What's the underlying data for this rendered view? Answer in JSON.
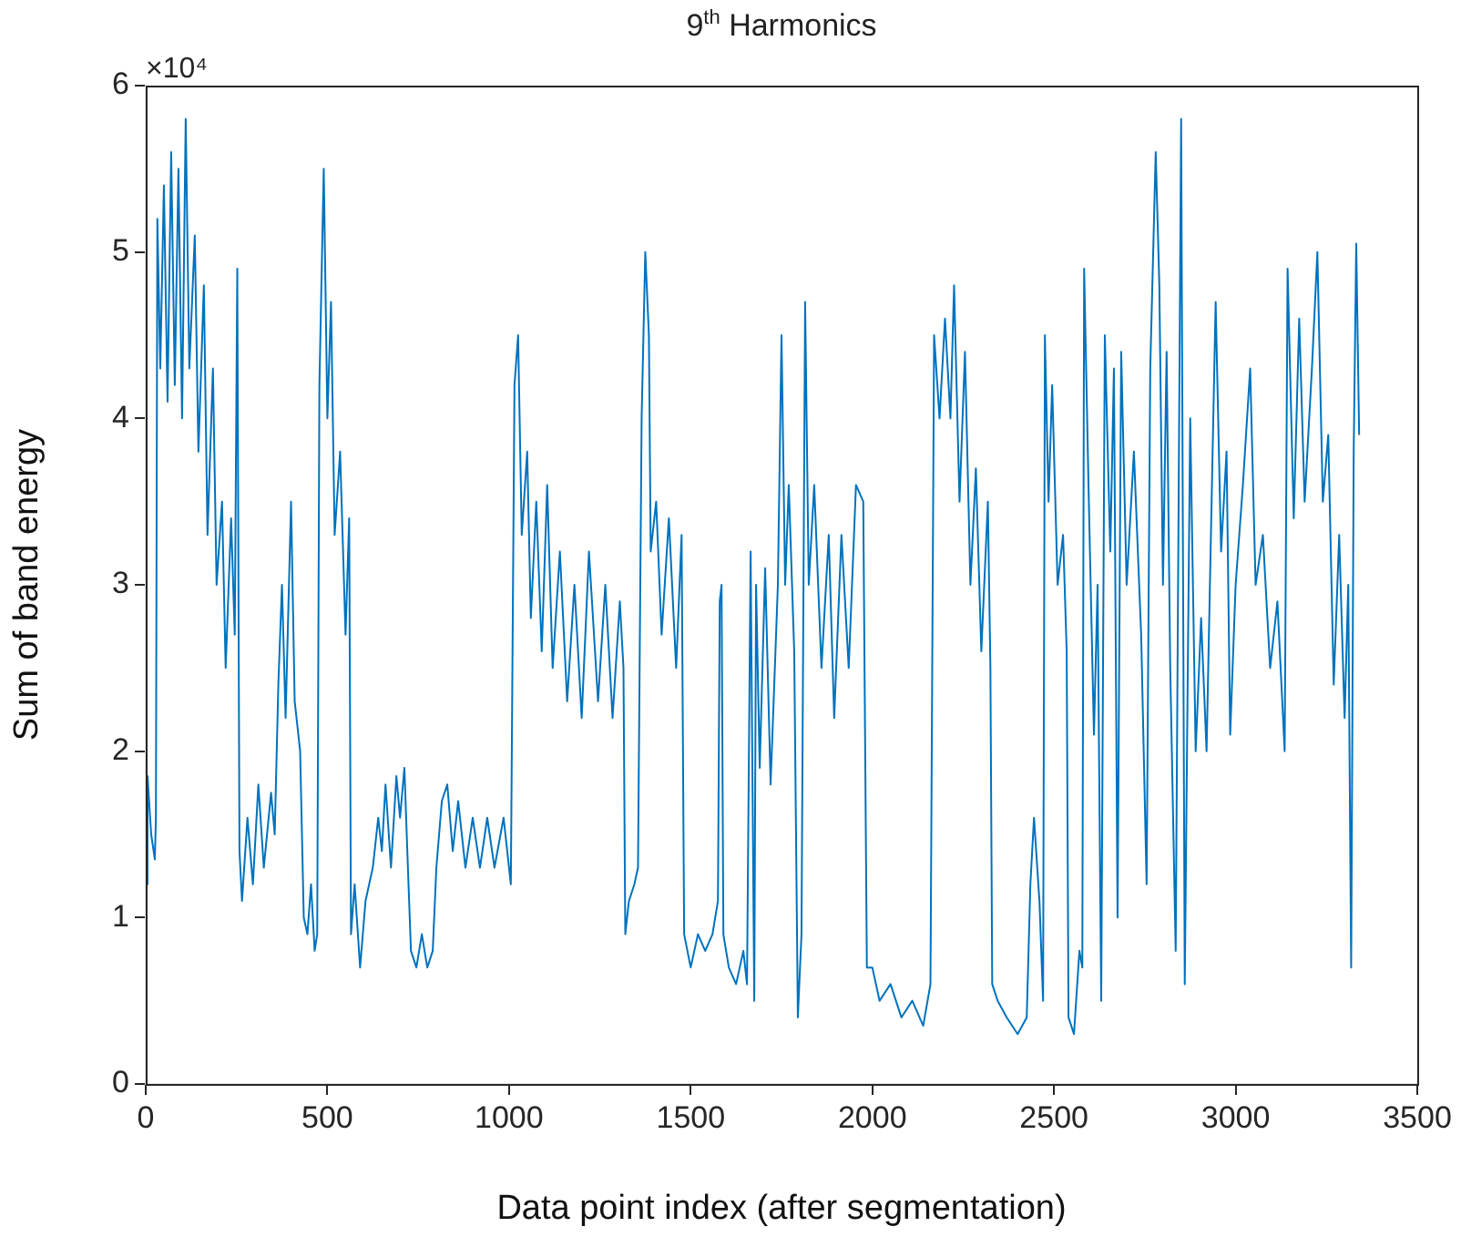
{
  "chart_data": {
    "type": "line",
    "title": "9$^{th}$ Harmonics",
    "xlabel": "Data point index (after segmentation)",
    "ylabel": "Sum of band energy",
    "annotations": [
      "×10⁴"
    ],
    "xlim": [
      0,
      3500
    ],
    "xticks": [
      0,
      500,
      1000,
      1500,
      2000,
      2500,
      3000,
      3500
    ],
    "ylim": [
      0,
      6
    ],
    "yticks": [
      0,
      1,
      2,
      3,
      4,
      5,
      6
    ],
    "grid": false,
    "legend": false,
    "marker": "none",
    "line_style": "solid",
    "series": [
      {
        "color": "#0072bd",
        "x": [
          0,
          5,
          15,
          25,
          28,
          32,
          40,
          50,
          60,
          70,
          80,
          90,
          100,
          110,
          120,
          135,
          145,
          160,
          170,
          185,
          195,
          210,
          220,
          235,
          245,
          252,
          258,
          265,
          280,
          295,
          310,
          325,
          345,
          355,
          365,
          375,
          385,
          400,
          410,
          425,
          435,
          445,
          455,
          465,
          472,
          478,
          490,
          500,
          510,
          520,
          535,
          550,
          560,
          565,
          575,
          590,
          605,
          625,
          640,
          650,
          660,
          675,
          690,
          700,
          712,
          720,
          730,
          745,
          760,
          775,
          790,
          800,
          815,
          830,
          845,
          860,
          880,
          900,
          920,
          940,
          960,
          985,
          1005,
          1015,
          1025,
          1035,
          1050,
          1060,
          1075,
          1090,
          1105,
          1120,
          1140,
          1160,
          1180,
          1200,
          1220,
          1245,
          1265,
          1285,
          1305,
          1315,
          1320,
          1330,
          1345,
          1355,
          1365,
          1375,
          1385,
          1390,
          1405,
          1420,
          1440,
          1460,
          1475,
          1482,
          1500,
          1520,
          1540,
          1560,
          1575,
          1580,
          1585,
          1590,
          1605,
          1625,
          1645,
          1655,
          1665,
          1675,
          1680,
          1690,
          1705,
          1720,
          1740,
          1750,
          1760,
          1770,
          1785,
          1795,
          1805,
          1815,
          1825,
          1840,
          1860,
          1880,
          1895,
          1915,
          1935,
          1955,
          1975,
          1985,
          2000,
          2020,
          2050,
          2080,
          2110,
          2140,
          2160,
          2170,
          2185,
          2200,
          2215,
          2225,
          2240,
          2255,
          2270,
          2285,
          2300,
          2318,
          2325,
          2330,
          2345,
          2370,
          2400,
          2425,
          2435,
          2445,
          2460,
          2470,
          2475,
          2485,
          2495,
          2510,
          2525,
          2535,
          2540,
          2555,
          2570,
          2578,
          2583,
          2595,
          2610,
          2620,
          2630,
          2640,
          2655,
          2665,
          2675,
          2685,
          2700,
          2720,
          2740,
          2755,
          2765,
          2780,
          2790,
          2800,
          2810,
          2820,
          2835,
          2850,
          2860,
          2875,
          2890,
          2905,
          2920,
          2945,
          2960,
          2975,
          2985,
          3000,
          3020,
          3040,
          3055,
          3075,
          3095,
          3115,
          3135,
          3143,
          3160,
          3175,
          3190,
          3210,
          3225,
          3240,
          3255,
          3270,
          3285,
          3300,
          3310,
          3318,
          3325,
          3332,
          3340
        ],
        "values": [
          1.2,
          1.85,
          1.5,
          1.35,
          1.6,
          5.2,
          4.3,
          5.4,
          4.1,
          5.6,
          4.2,
          5.5,
          4.0,
          5.8,
          4.3,
          5.1,
          3.8,
          4.8,
          3.3,
          4.3,
          3.0,
          3.5,
          2.5,
          3.4,
          2.7,
          4.9,
          1.4,
          1.1,
          1.6,
          1.2,
          1.8,
          1.3,
          1.75,
          1.5,
          2.4,
          3.0,
          2.2,
          3.5,
          2.3,
          2.0,
          1.0,
          0.9,
          1.2,
          0.8,
          0.9,
          4.2,
          5.5,
          4.0,
          4.7,
          3.3,
          3.8,
          2.7,
          3.4,
          0.9,
          1.2,
          0.7,
          1.1,
          1.3,
          1.6,
          1.4,
          1.8,
          1.3,
          1.85,
          1.6,
          1.9,
          1.4,
          0.8,
          0.7,
          0.9,
          0.7,
          0.8,
          1.3,
          1.7,
          1.8,
          1.4,
          1.7,
          1.3,
          1.6,
          1.3,
          1.6,
          1.3,
          1.6,
          1.2,
          4.2,
          4.5,
          3.3,
          3.8,
          2.8,
          3.5,
          2.6,
          3.6,
          2.5,
          3.2,
          2.3,
          3.0,
          2.2,
          3.2,
          2.3,
          3.0,
          2.2,
          2.9,
          2.5,
          0.9,
          1.1,
          1.2,
          1.3,
          4.0,
          5.0,
          4.5,
          3.2,
          3.5,
          2.7,
          3.4,
          2.5,
          3.3,
          0.9,
          0.7,
          0.9,
          0.8,
          0.9,
          1.1,
          2.9,
          3.0,
          0.9,
          0.7,
          0.6,
          0.8,
          0.6,
          3.2,
          0.5,
          3.0,
          1.9,
          3.1,
          1.8,
          3.0,
          4.5,
          3.0,
          3.6,
          2.6,
          0.4,
          0.9,
          4.7,
          3.0,
          3.6,
          2.5,
          3.3,
          2.2,
          3.3,
          2.5,
          3.6,
          3.5,
          0.7,
          0.7,
          0.5,
          0.6,
          0.4,
          0.5,
          0.35,
          0.6,
          4.5,
          4.0,
          4.6,
          4.0,
          4.8,
          3.5,
          4.4,
          3.0,
          3.7,
          2.6,
          3.5,
          2.5,
          0.6,
          0.5,
          0.4,
          0.3,
          0.4,
          1.2,
          1.6,
          1.1,
          0.5,
          4.5,
          3.5,
          4.2,
          3.0,
          3.3,
          2.6,
          0.4,
          0.3,
          0.8,
          0.7,
          4.9,
          3.6,
          2.1,
          3.0,
          0.5,
          4.5,
          3.2,
          4.3,
          1.0,
          4.4,
          3.0,
          3.8,
          2.7,
          1.2,
          4.3,
          5.6,
          4.8,
          3.0,
          4.4,
          2.5,
          0.8,
          5.8,
          0.6,
          4.0,
          2.0,
          2.8,
          2.0,
          4.7,
          3.2,
          3.8,
          2.1,
          3.0,
          3.6,
          4.3,
          3.0,
          3.3,
          2.5,
          2.9,
          2.0,
          4.9,
          3.4,
          4.6,
          3.5,
          4.3,
          5.0,
          3.5,
          3.9,
          2.4,
          3.3,
          2.2,
          3.0,
          0.7,
          3.8,
          5.05,
          3.9
        ]
      }
    ]
  }
}
